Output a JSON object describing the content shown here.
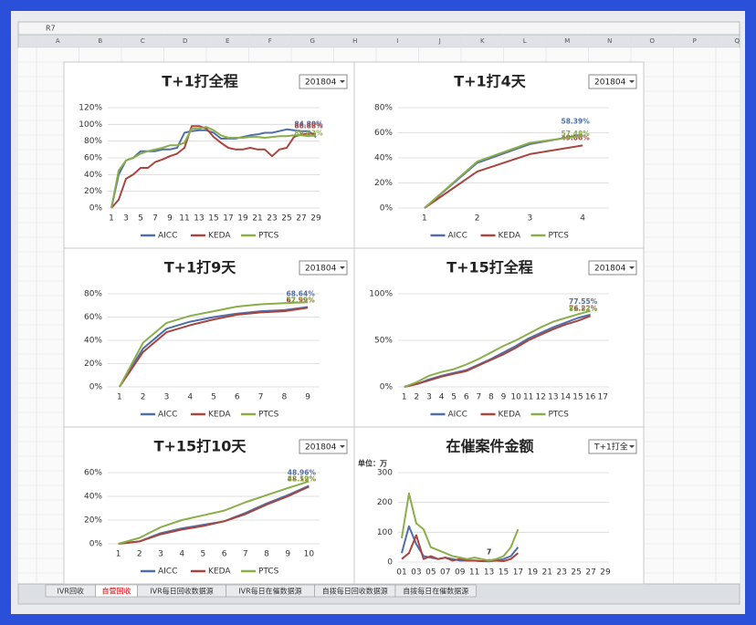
{
  "name_box": "R7",
  "column_headers": [
    "A",
    "B",
    "C",
    "D",
    "E",
    "F",
    "G",
    "H",
    "I",
    "J",
    "K",
    "L",
    "M",
    "N",
    "O",
    "P",
    "Q"
  ],
  "sheet_tabs": [
    "IVR回收",
    "自营回收",
    "IVR每日回收数据源",
    "IVR每日在催数据源",
    "自拨每日回收数据源",
    "自拨每日在催数据源"
  ],
  "chart_data": [
    {
      "type": "line",
      "title": "T+1打全程",
      "dropdown": "201804",
      "categories": [
        "1",
        null,
        "3",
        null,
        "5",
        null,
        "7",
        null,
        "9",
        null,
        "11",
        null,
        "13",
        null,
        "15",
        null,
        "17",
        null,
        "19",
        null,
        "21",
        null,
        "23",
        null,
        "25",
        null,
        "27",
        null,
        "29"
      ],
      "ylim": [
        0,
        120
      ],
      "yticks": [
        {
          "value": 0,
          "label": "0%"
        },
        {
          "value": 20,
          "label": "20%"
        },
        {
          "value": 40,
          "label": "40%"
        },
        {
          "value": 60,
          "label": "60%"
        },
        {
          "value": 80,
          "label": "80%"
        },
        {
          "value": 100,
          "label": "100%"
        },
        {
          "value": 120,
          "label": "120%"
        }
      ],
      "series": [
        {
          "name": "AICC",
          "color": "#4f6fa8",
          "values": [
            0,
            40,
            57,
            60,
            68,
            68,
            68,
            70,
            70,
            72,
            90,
            92,
            93,
            93,
            90,
            83,
            83,
            83,
            85,
            87,
            88,
            90,
            90,
            92,
            94,
            93,
            92,
            92,
            84.8
          ],
          "value_labels": [
            null,
            null,
            null,
            null,
            null,
            null,
            null,
            null,
            null,
            null,
            null,
            null,
            null,
            null,
            null,
            null,
            null,
            null,
            null,
            null,
            null,
            null,
            null,
            null,
            null,
            null,
            null,
            null,
            "84.80%"
          ]
        },
        {
          "name": "KEDA",
          "color": "#a9443f",
          "values": [
            0,
            10,
            35,
            40,
            48,
            48,
            55,
            58,
            62,
            65,
            72,
            98,
            98,
            95,
            85,
            78,
            72,
            70,
            70,
            72,
            70,
            70,
            62,
            70,
            72,
            85,
            88,
            89,
            88.88
          ],
          "value_labels": [
            null,
            null,
            null,
            null,
            null,
            null,
            null,
            null,
            null,
            null,
            null,
            null,
            null,
            null,
            null,
            null,
            null,
            null,
            null,
            null,
            null,
            null,
            null,
            null,
            null,
            null,
            null,
            null,
            "88.88%"
          ]
        },
        {
          "name": "PTCS",
          "color": "#8aae4a",
          "values": [
            0,
            45,
            57,
            60,
            65,
            68,
            70,
            72,
            75,
            75,
            78,
            95,
            95,
            97,
            93,
            87,
            84,
            84,
            84,
            85,
            85,
            84,
            85,
            86,
            86,
            87,
            87,
            86,
            86.83
          ],
          "value_labels": [
            null,
            null,
            null,
            null,
            null,
            null,
            null,
            null,
            null,
            null,
            null,
            null,
            null,
            null,
            null,
            null,
            null,
            null,
            null,
            null,
            null,
            null,
            null,
            null,
            null,
            null,
            null,
            null,
            "86.83%"
          ]
        }
      ]
    },
    {
      "type": "line",
      "title": "T+1打4天",
      "dropdown": "201804",
      "categories": [
        "1",
        "2",
        "3",
        "4"
      ],
      "ylim": [
        0,
        80
      ],
      "yticks": [
        {
          "value": 0,
          "label": "0%"
        },
        {
          "value": 20,
          "label": "20%"
        },
        {
          "value": 40,
          "label": "40%"
        },
        {
          "value": 60,
          "label": "60%"
        },
        {
          "value": 80,
          "label": "80%"
        }
      ],
      "series": [
        {
          "name": "AICC",
          "color": "#4f6fa8",
          "values": [
            0,
            36,
            51,
            58.39
          ],
          "value_labels": [
            null,
            null,
            null,
            "58.39%"
          ]
        },
        {
          "name": "KEDA",
          "color": "#a9443f",
          "values": [
            0,
            29,
            43,
            49.86
          ],
          "value_labels": [
            null,
            null,
            null,
            "49.86%"
          ]
        },
        {
          "name": "PTCS",
          "color": "#8aae4a",
          "values": [
            0,
            37,
            52,
            57.48
          ],
          "value_labels": [
            null,
            null,
            null,
            "57.48%"
          ]
        }
      ]
    },
    {
      "type": "line",
      "title": "T+1打9天",
      "dropdown": "201804",
      "categories": [
        "1",
        "2",
        "3",
        "4",
        "5",
        "6",
        "7",
        "8",
        "9"
      ],
      "ylim": [
        0,
        80
      ],
      "yticks": [
        {
          "value": 0,
          "label": "0%"
        },
        {
          "value": 20,
          "label": "20%"
        },
        {
          "value": 40,
          "label": "40%"
        },
        {
          "value": 60,
          "label": "60%"
        },
        {
          "value": 80,
          "label": "80%"
        }
      ],
      "series": [
        {
          "name": "AICC",
          "color": "#4f6fa8",
          "values": [
            0,
            33,
            50,
            56,
            60,
            63,
            65,
            66,
            68.64
          ],
          "value_labels": [
            null,
            null,
            null,
            null,
            null,
            null,
            null,
            null,
            "68.64%"
          ]
        },
        {
          "name": "KEDA",
          "color": "#a9443f",
          "values": [
            0,
            30,
            47,
            53,
            58,
            62,
            64,
            65,
            67.99
          ],
          "value_labels": [
            null,
            null,
            null,
            null,
            null,
            null,
            null,
            null,
            "67.99%"
          ]
        },
        {
          "name": "PTCS",
          "color": "#8aae4a",
          "values": [
            0,
            38,
            55,
            61,
            65,
            69,
            71,
            72,
            72.72
          ],
          "value_labels": [
            null,
            null,
            null,
            null,
            null,
            null,
            null,
            null,
            "72.72%"
          ]
        }
      ]
    },
    {
      "type": "line",
      "title": "T+15打全程",
      "dropdown": "201804",
      "categories": [
        "1",
        "2",
        "3",
        "4",
        "5",
        "6",
        "7",
        "8",
        "9",
        "10",
        "11",
        "12",
        "13",
        "14",
        "15",
        "16",
        "17"
      ],
      "ylim": [
        0,
        100
      ],
      "yticks": [
        {
          "value": 0,
          "label": "0%"
        },
        {
          "value": 50,
          "label": "50%"
        },
        {
          "value": 100,
          "label": "100%"
        }
      ],
      "series": [
        {
          "name": "AICC",
          "color": "#4f6fa8",
          "values": [
            0,
            3,
            8,
            12,
            15,
            18,
            24,
            30,
            37,
            44,
            52,
            58,
            64,
            69,
            74,
            77.55,
            null
          ],
          "value_labels": [
            null,
            null,
            null,
            null,
            null,
            null,
            null,
            null,
            null,
            null,
            null,
            null,
            null,
            null,
            null,
            "77.55%",
            null
          ]
        },
        {
          "name": "KEDA",
          "color": "#a9443f",
          "values": [
            0,
            3,
            7,
            11,
            14,
            17,
            23,
            29,
            35,
            42,
            50,
            56,
            62,
            67,
            71,
            76.22,
            null
          ],
          "value_labels": [
            null,
            null,
            null,
            null,
            null,
            null,
            null,
            null,
            null,
            null,
            null,
            null,
            null,
            null,
            null,
            "76.22%",
            null
          ]
        },
        {
          "name": "PTCS",
          "color": "#8aae4a",
          "values": [
            0,
            5,
            12,
            16,
            19,
            24,
            30,
            37,
            44,
            50,
            57,
            64,
            70,
            74,
            78,
            81.52,
            null
          ],
          "value_labels": [
            null,
            null,
            null,
            null,
            null,
            null,
            null,
            null,
            null,
            null,
            null,
            null,
            null,
            null,
            null,
            "81.52%",
            null
          ]
        }
      ]
    },
    {
      "type": "line",
      "title": "T+15打10天",
      "dropdown": "201804",
      "categories": [
        "1",
        "2",
        "3",
        "4",
        "5",
        "6",
        "7",
        "8",
        "9",
        "10"
      ],
      "ylim": [
        0,
        60
      ],
      "yticks": [
        {
          "value": 0,
          "label": "0%"
        },
        {
          "value": 20,
          "label": "20%"
        },
        {
          "value": 40,
          "label": "40%"
        },
        {
          "value": 60,
          "label": "60%"
        }
      ],
      "series": [
        {
          "name": "AICC",
          "color": "#4f6fa8",
          "values": [
            0,
            2,
            9,
            13,
            16,
            19,
            26,
            34,
            41,
            48.96
          ],
          "value_labels": [
            null,
            null,
            null,
            null,
            null,
            null,
            null,
            null,
            null,
            "48.96%"
          ]
        },
        {
          "name": "KEDA",
          "color": "#a9443f",
          "values": [
            0,
            2,
            8,
            12,
            15,
            19,
            25,
            33,
            40,
            48.12
          ],
          "value_labels": [
            null,
            null,
            null,
            null,
            null,
            null,
            null,
            null,
            null,
            "48.12%"
          ]
        },
        {
          "name": "PTCS",
          "color": "#8aae4a",
          "values": [
            0,
            5,
            14,
            20,
            24,
            28,
            35,
            41,
            47,
            52.59
          ],
          "value_labels": [
            null,
            null,
            null,
            null,
            null,
            null,
            null,
            null,
            null,
            "52.59%"
          ]
        }
      ]
    },
    {
      "type": "line",
      "title": "在催案件金额",
      "dropdown": "T+1打全",
      "unit_note": "单位：万",
      "categories": [
        "01",
        null,
        "03",
        null,
        "05",
        null,
        "07",
        null,
        "09",
        null,
        "11",
        null,
        "13",
        null,
        "15",
        null,
        "17",
        null,
        "19",
        null,
        "21",
        null,
        "23",
        null,
        "25",
        null,
        "27",
        null,
        "29"
      ],
      "ylim": [
        0,
        300
      ],
      "yticks": [
        0,
        100,
        200,
        300
      ],
      "series": [
        {
          "color": "#4f6fa8",
          "values": [
            30,
            120,
            60,
            20,
            15,
            10,
            15,
            10,
            5,
            5,
            5,
            3,
            2,
            5,
            10,
            20,
            50,
            null,
            null,
            null,
            null,
            null,
            null,
            null,
            null,
            null,
            null,
            null,
            null
          ]
        },
        {
          "color": "#a9443f",
          "values": [
            10,
            30,
            90,
            10,
            20,
            10,
            15,
            5,
            10,
            5,
            5,
            3,
            7,
            5,
            3,
            10,
            30,
            null,
            null,
            null,
            null,
            null,
            null,
            null,
            null,
            null,
            null,
            null,
            null
          ],
          "value_labels": [
            null,
            null,
            null,
            null,
            null,
            null,
            null,
            null,
            null,
            null,
            null,
            null,
            "7",
            null,
            null,
            null,
            null,
            null,
            null,
            null,
            null,
            null,
            null,
            null,
            null,
            null,
            null,
            null,
            null
          ]
        },
        {
          "color": "#8aae4a",
          "values": [
            80,
            230,
            130,
            110,
            50,
            40,
            30,
            20,
            15,
            10,
            15,
            10,
            5,
            10,
            20,
            50,
            110,
            null,
            null,
            null,
            null,
            null,
            null,
            null,
            null,
            null,
            null,
            null,
            null
          ]
        }
      ]
    }
  ]
}
